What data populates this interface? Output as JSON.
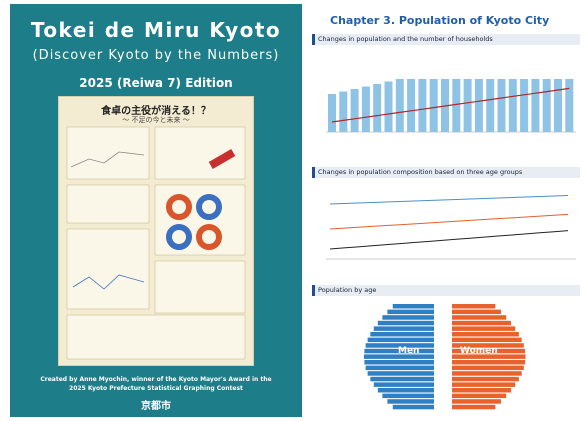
{
  "cover": {
    "title": "Tokei de Miru Kyoto",
    "subtitle": "(Discover Kyoto by the Numbers)",
    "edition": "2025 (Reiwa 7) Edition",
    "poster_title": "食卓の主役が消える！？",
    "poster_subtitle": "～ 不足の今と未来 ～",
    "credit_line1": "Created by Anne Myochin, winner of the Kyoto Mayor's Award in the",
    "credit_line2": "2025 Kyoto Prefecture Statistical Graphing Contest",
    "logo": "京都市"
  },
  "page": {
    "chapter_title": "Chapter 3. Population of Kyoto City",
    "sections": [
      "Changes in population and the number of households",
      "Changes in population composition based on three age groups",
      "Population by age"
    ],
    "pyramid_labels": [
      "Men",
      "Women"
    ]
  }
}
